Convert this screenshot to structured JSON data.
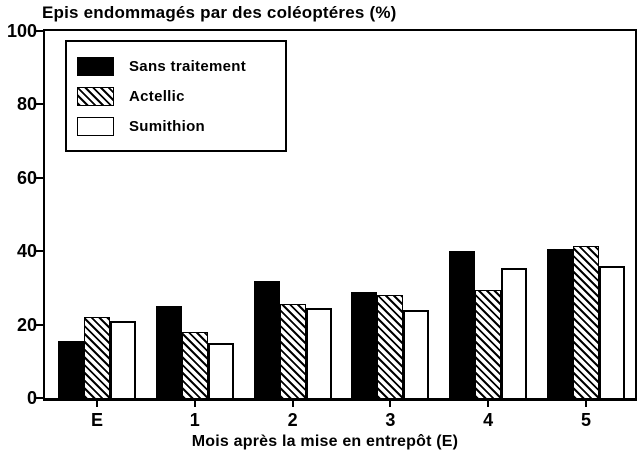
{
  "chart_data": {
    "type": "bar",
    "title": "Epis endommagés par des coléoptéres (%)",
    "xlabel": "Mois après la mise en entrepôt (E)",
    "ylabel": "",
    "categories": [
      "E",
      "1",
      "2",
      "3",
      "4",
      "5"
    ],
    "series": [
      {
        "name": "Sans traitement",
        "style": "solid-black",
        "values": [
          15.5,
          25,
          32,
          29,
          40,
          40.5
        ]
      },
      {
        "name": "Actellic",
        "style": "diagonal-hatch",
        "values": [
          22,
          18,
          25.5,
          28,
          29.5,
          41.5
        ]
      },
      {
        "name": "Sumithion",
        "style": "white",
        "values": [
          21,
          15,
          24.5,
          24,
          35.5,
          36
        ]
      }
    ],
    "ylim": [
      0,
      100
    ],
    "yticks": [
      0,
      20,
      40,
      60,
      80,
      100
    ],
    "grid": false,
    "legend_position": "upper-left",
    "colors": {
      "foreground": "#000000",
      "background": "#ffffff"
    }
  }
}
